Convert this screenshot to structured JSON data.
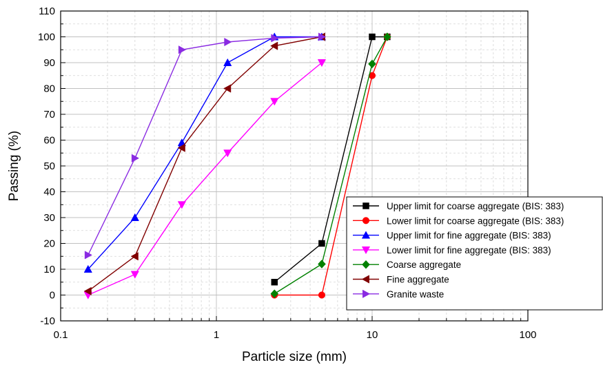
{
  "chart_data": {
    "type": "line",
    "xlabel": "Particle size (mm)",
    "ylabel": "Passing (%)",
    "x_scale": "log",
    "xlim": [
      0.1,
      100
    ],
    "ylim": [
      -10,
      110
    ],
    "x_ticks": [
      0.1,
      1,
      10,
      100
    ],
    "x_tick_labels": [
      "0.1",
      "1",
      "10",
      "100"
    ],
    "y_ticks": [
      -10,
      0,
      10,
      20,
      30,
      40,
      50,
      60,
      70,
      80,
      90,
      100,
      110
    ],
    "y_tick_labels": [
      "-10",
      "0",
      "10",
      "20",
      "30",
      "40",
      "50",
      "60",
      "70",
      "80",
      "90",
      "100",
      "110"
    ],
    "grid": true,
    "legend_position": "bottom-right",
    "series": [
      {
        "name": "Upper limit for coarse aggregate (BIS: 383)",
        "color": "#000000",
        "marker": "square",
        "points": [
          [
            2.36,
            5
          ],
          [
            4.75,
            20
          ],
          [
            10,
            100
          ],
          [
            12.5,
            100
          ]
        ]
      },
      {
        "name": "Lower limit for coarse aggregate (BIS: 383)",
        "color": "#ff0000",
        "marker": "circle",
        "points": [
          [
            2.36,
            0
          ],
          [
            4.75,
            0
          ],
          [
            10,
            85
          ],
          [
            12.5,
            100
          ]
        ]
      },
      {
        "name": "Upper limit for fine aggregate (BIS: 383)",
        "color": "#0000ff",
        "marker": "triangle-up",
        "points": [
          [
            0.15,
            10
          ],
          [
            0.3,
            30
          ],
          [
            0.6,
            59
          ],
          [
            1.18,
            90
          ],
          [
            2.36,
            100
          ],
          [
            4.75,
            100
          ]
        ]
      },
      {
        "name": "Lower limit for fine aggregate (BIS: 383)",
        "color": "#ff00ff",
        "marker": "triangle-down",
        "points": [
          [
            0.15,
            0
          ],
          [
            0.3,
            8
          ],
          [
            0.6,
            35
          ],
          [
            1.18,
            55
          ],
          [
            2.36,
            75
          ],
          [
            4.75,
            90
          ]
        ]
      },
      {
        "name": "Coarse aggregate",
        "color": "#008000",
        "marker": "diamond",
        "points": [
          [
            2.36,
            0.5
          ],
          [
            4.75,
            12
          ],
          [
            10,
            89.5
          ],
          [
            12.5,
            100
          ]
        ]
      },
      {
        "name": "Fine aggregate",
        "color": "#800000",
        "marker": "triangle-left",
        "points": [
          [
            0.15,
            1.5
          ],
          [
            0.3,
            15
          ],
          [
            0.6,
            57
          ],
          [
            1.18,
            80
          ],
          [
            2.36,
            96.5
          ],
          [
            4.75,
            100
          ]
        ]
      },
      {
        "name": "Granite waste",
        "color": "#8a2be2",
        "marker": "triangle-right",
        "points": [
          [
            0.15,
            15.5
          ],
          [
            0.3,
            53
          ],
          [
            0.6,
            95
          ],
          [
            1.18,
            98
          ],
          [
            2.36,
            99.5
          ],
          [
            4.75,
            100
          ]
        ]
      }
    ]
  }
}
